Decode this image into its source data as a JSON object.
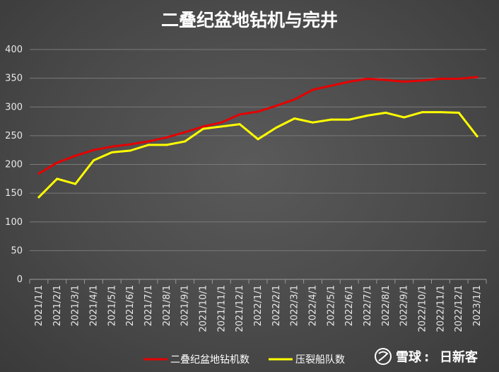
{
  "chart_data": {
    "type": "line",
    "title": "二叠纪盆地钻机与完井",
    "xlabel": "",
    "ylabel": "",
    "ylim": [
      0,
      400
    ],
    "yticks": [
      0,
      50,
      100,
      150,
      200,
      250,
      300,
      350,
      400
    ],
    "grid": true,
    "legend_position": "bottom",
    "categories": [
      "2021/1/1",
      "2021/2/1",
      "2021/3/1",
      "2021/4/1",
      "2021/5/1",
      "2021/6/1",
      "2021/7/1",
      "2021/8/1",
      "2021/9/1",
      "2021/10/1",
      "2021/11/1",
      "2021/12/1",
      "2022/1/1",
      "2022/2/1",
      "2022/3/1",
      "2022/4/1",
      "2022/5/1",
      "2022/6/1",
      "2022/7/1",
      "2022/8/1",
      "2022/9/1",
      "2022/10/1",
      "2022/11/1",
      "2022/12/1",
      "2023/1/1"
    ],
    "series": [
      {
        "name": "二叠纪盆地钻机数",
        "color": "#e60000",
        "values": [
          184,
          203,
          215,
          225,
          231,
          235,
          240,
          247,
          256,
          266,
          273,
          287,
          292,
          302,
          313,
          330,
          337,
          344,
          349,
          347,
          344,
          346,
          349,
          349,
          352
        ]
      },
      {
        "name": "压裂船队数",
        "color": "#ffff00",
        "values": [
          143,
          175,
          166,
          207,
          221,
          224,
          234,
          234,
          240,
          262,
          266,
          270,
          244,
          264,
          280,
          273,
          278,
          278,
          285,
          290,
          282,
          291,
          291,
          290,
          249
        ]
      }
    ]
  },
  "watermark": {
    "brand": "雪球",
    "separator": ":",
    "author": "日新客"
  }
}
